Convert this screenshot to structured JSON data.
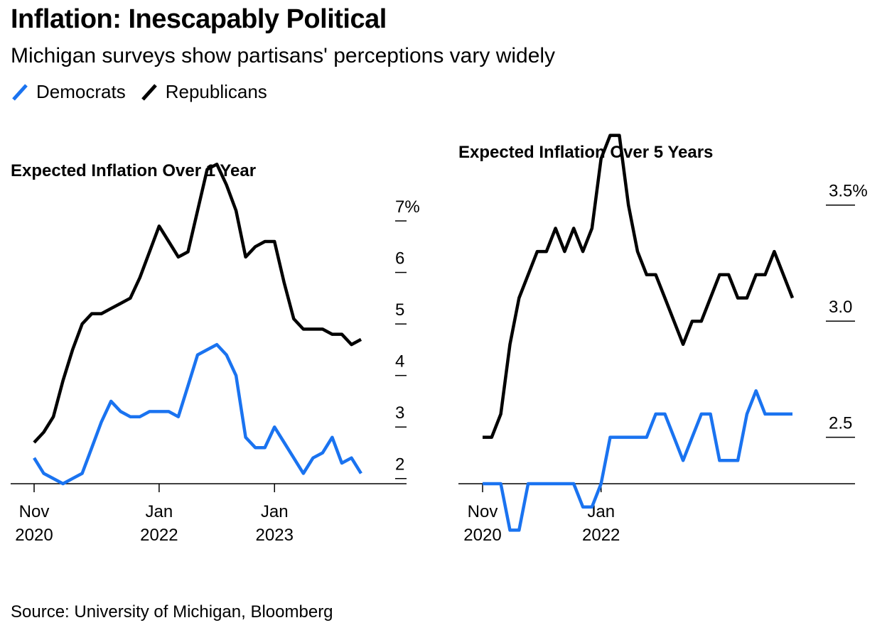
{
  "title": "Inflation: Inescapably Political",
  "subtitle": "Michigan surveys show partisans' perceptions vary widely",
  "source": "Source: University of Michigan, Bloomberg",
  "colors": {
    "democrats": "#1a73f0",
    "republicans": "#000000",
    "axis": "#000000"
  },
  "legend": [
    {
      "label": "Democrats",
      "color": "#1a73f0"
    },
    {
      "label": "Republicans",
      "color": "#000000"
    }
  ],
  "chart_data": [
    {
      "type": "line",
      "title": "Expected Inflation Over 1 Year",
      "x_label_lines": [
        [
          "Nov",
          "2020"
        ],
        [
          "Jan",
          "2022"
        ],
        [
          "Jan",
          "2023"
        ]
      ],
      "x_label_index": [
        0,
        13,
        25
      ],
      "x_count": 35,
      "ylim": [
        1.9,
        7.4
      ],
      "y_ticks": [
        2,
        3,
        4,
        5,
        6,
        7
      ],
      "y_tick_labels": [
        "2",
        "3",
        "4",
        "5",
        "6",
        "7%"
      ],
      "grid": false,
      "legend": "top-left",
      "series": [
        {
          "name": "Republicans",
          "values": [
            2.7,
            2.9,
            3.2,
            3.9,
            4.5,
            5.0,
            5.2,
            5.2,
            5.3,
            5.4,
            5.5,
            5.9,
            6.4,
            6.9,
            6.6,
            6.3,
            6.4,
            7.2,
            8.0,
            8.1,
            7.7,
            7.2,
            6.3,
            6.5,
            6.6,
            6.6,
            5.8,
            5.1,
            4.9,
            4.9,
            4.9,
            4.8,
            4.8,
            4.6,
            4.7
          ]
        },
        {
          "name": "Democrats",
          "values": [
            2.4,
            2.1,
            2.0,
            1.9,
            2.0,
            2.1,
            2.6,
            3.1,
            3.5,
            3.3,
            3.2,
            3.2,
            3.3,
            3.3,
            3.3,
            3.2,
            3.8,
            4.4,
            4.5,
            4.6,
            4.4,
            4.0,
            2.8,
            2.6,
            2.6,
            3.0,
            2.7,
            2.4,
            2.1,
            2.4,
            2.5,
            2.8,
            2.3,
            2.4,
            2.1
          ]
        }
      ]
    },
    {
      "type": "line",
      "title": "Expected Inflation Over 5 Years",
      "x_label_lines": [
        [
          "Nov",
          "2020"
        ],
        [
          "Jan",
          "2022"
        ]
      ],
      "x_label_index": [
        0,
        13
      ],
      "x_count": 35,
      "ylim": [
        2.3,
        3.6
      ],
      "y_ticks": [
        2.5,
        3.0,
        3.5
      ],
      "y_tick_labels": [
        "2.5",
        "3.0",
        "3.5%"
      ],
      "grid": false,
      "series": [
        {
          "name": "Republicans",
          "values": [
            2.5,
            2.5,
            2.6,
            2.9,
            3.1,
            3.2,
            3.3,
            3.3,
            3.4,
            3.3,
            3.4,
            3.3,
            3.4,
            3.7,
            3.8,
            3.8,
            3.5,
            3.3,
            3.2,
            3.2,
            3.1,
            3.0,
            2.9,
            3.0,
            3.0,
            3.1,
            3.2,
            3.2,
            3.1,
            3.1,
            3.2,
            3.2,
            3.3,
            3.2,
            3.1
          ]
        },
        {
          "name": "Democrats",
          "values": [
            2.3,
            2.3,
            2.3,
            2.1,
            2.1,
            2.3,
            2.3,
            2.3,
            2.3,
            2.3,
            2.3,
            2.2,
            2.2,
            2.3,
            2.5,
            2.5,
            2.5,
            2.5,
            2.5,
            2.6,
            2.6,
            2.5,
            2.4,
            2.5,
            2.6,
            2.6,
            2.4,
            2.4,
            2.4,
            2.6,
            2.7,
            2.6,
            2.6,
            2.6,
            2.6
          ]
        }
      ]
    }
  ]
}
